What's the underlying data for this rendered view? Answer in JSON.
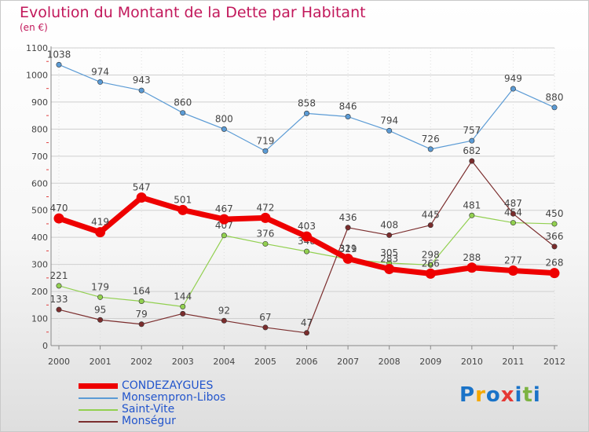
{
  "title": "Evolution du Montant de la Dette par Habitant",
  "subtitle": "(en €)",
  "logo": {
    "text": "Proxiti",
    "colors": [
      "#1a73c8",
      "#f5a800",
      "#1a73c8",
      "#e53935",
      "#1a73c8",
      "#7cb342",
      "#1a73c8"
    ]
  },
  "chart_data": {
    "type": "line",
    "x": [
      "2000",
      "2001",
      "2002",
      "2003",
      "2004",
      "2005",
      "2006",
      "2007",
      "2008",
      "2009",
      "2010",
      "2011",
      "2012"
    ],
    "ylim": [
      0,
      1100
    ],
    "yticks": [
      "0",
      "100",
      "200",
      "300",
      "400",
      "500",
      "600",
      "700",
      "800",
      "900",
      "1000",
      "1100"
    ],
    "grid": true,
    "legend_position": "bottom-left",
    "series": [
      {
        "name": "CONDEZAYGUES",
        "color": "#ee0000",
        "highlight": true,
        "values": [
          470,
          419,
          547,
          501,
          467,
          472,
          403,
          321,
          283,
          266,
          288,
          277,
          268
        ],
        "labels": [
          "470",
          "419",
          "547",
          "501",
          "467",
          "472",
          "403",
          "321",
          "283",
          "266",
          "288",
          "277",
          "268"
        ]
      },
      {
        "name": "Monsempron-Libos",
        "color": "#5b9bd5",
        "values": [
          1038,
          974,
          943,
          860,
          800,
          719,
          858,
          846,
          794,
          726,
          757,
          949,
          880
        ],
        "labels": [
          "1038",
          "974",
          "943",
          "860",
          "800",
          "719",
          "858",
          "846",
          "794",
          "726",
          "757",
          "949",
          "880"
        ]
      },
      {
        "name": "Saint-Vite",
        "color": "#92d050",
        "values": [
          221,
          179,
          164,
          144,
          407,
          376,
          348,
          319,
          305,
          298,
          481,
          454,
          450
        ],
        "labels": [
          "221",
          "179",
          "164",
          "144",
          "407",
          "376",
          "348",
          "319",
          "305",
          "298",
          "481",
          "454",
          "450"
        ]
      },
      {
        "name": "Monségur",
        "color": "#7b2d2d",
        "values": [
          133,
          95,
          79,
          118,
          92,
          67,
          47,
          436,
          408,
          445,
          682,
          487,
          366
        ],
        "labels": [
          "133",
          "95",
          "79",
          null,
          "92",
          "67",
          "47",
          "436",
          "408",
          "445",
          "682",
          "487",
          "366"
        ]
      }
    ]
  }
}
